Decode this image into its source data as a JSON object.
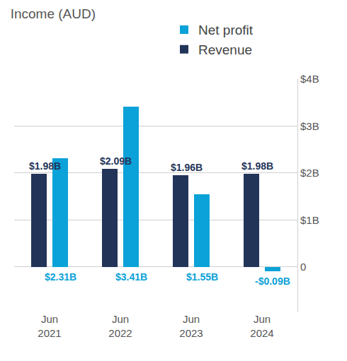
{
  "chart_data": {
    "type": "bar",
    "title": "Income (AUD)",
    "categories": [
      "Jun 2021",
      "Jun 2022",
      "Jun 2023",
      "Jun 2024"
    ],
    "series": [
      {
        "name": "Net profit",
        "color": "#0aa2d8",
        "values": [
          2.31,
          3.41,
          1.55,
          -0.09
        ],
        "value_labels": [
          "$2.31B",
          "$3.41B",
          "$1.55B",
          "-$0.09B"
        ]
      },
      {
        "name": "Revenue",
        "color": "#233459",
        "values": [
          1.98,
          2.09,
          1.96,
          1.98
        ],
        "value_labels": [
          "$1.98B",
          "$2.09B",
          "$1.96B",
          "$1.98B"
        ]
      }
    ],
    "ylim": [
      -0.95,
      4
    ],
    "yticks": [
      0,
      {
        "value": 1,
        "label": "$1B"
      },
      {
        "value": 2,
        "label": "$2B"
      },
      {
        "value": 3,
        "label": "$3B"
      },
      {
        "value": 4,
        "label": "$4B"
      }
    ],
    "grid": true,
    "legend": "top",
    "data_labels": true
  }
}
